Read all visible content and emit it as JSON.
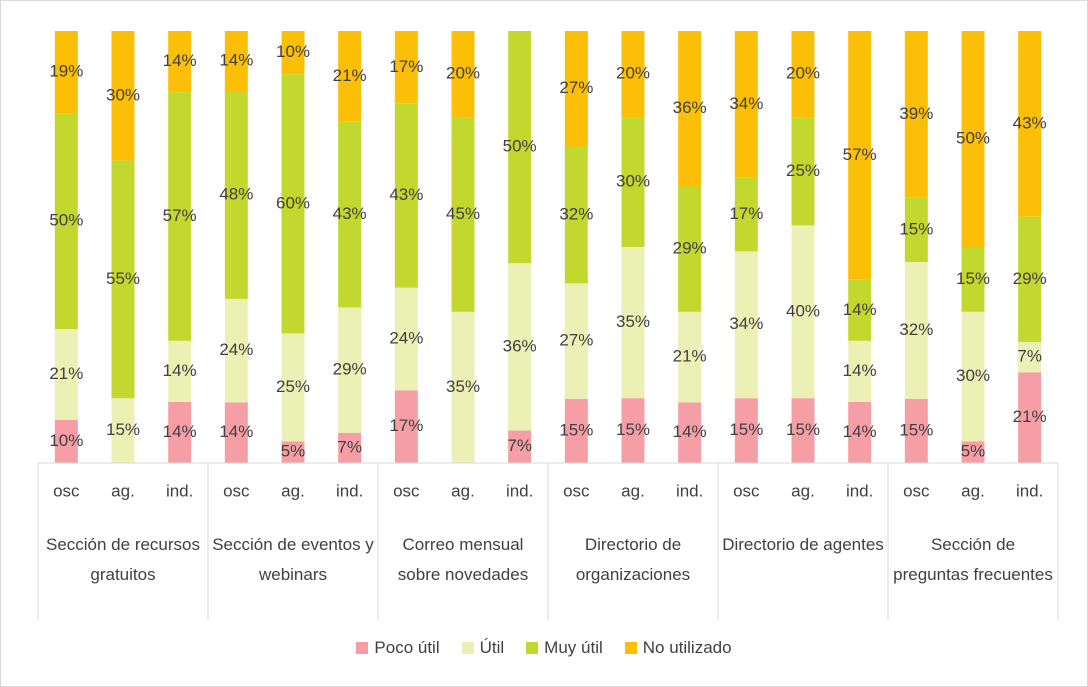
{
  "chart_data": {
    "type": "bar",
    "stacked": "percent",
    "categories": [
      "osc",
      "ag.",
      "ind.",
      "osc",
      "ag.",
      "ind.",
      "osc",
      "ag.",
      "ind.",
      "osc",
      "ag.",
      "ind.",
      "osc",
      "ag.",
      "ind.",
      "osc",
      "ag.",
      "ind."
    ],
    "groups": [
      "Sección de recursos gratuitos",
      "Sección de eventos y webinars",
      "Correo mensual sobre novedades",
      "Directorio de organizaciones",
      "Directorio de agentes",
      "Sección de preguntas frecuentes"
    ],
    "series": [
      {
        "name": "Poco útil",
        "color": "#f59ea5",
        "values": [
          10,
          null,
          14,
          14,
          5,
          7,
          17,
          null,
          7,
          15,
          15,
          14,
          15,
          15,
          14,
          15,
          5,
          21
        ],
        "value_labels": [
          "10%",
          null,
          "14%",
          "14%",
          "5%",
          "7%",
          "17%",
          null,
          "7%",
          "15%",
          "15%",
          "14%",
          "15%",
          "15%",
          "14%",
          "15%",
          "5%",
          "21%"
        ]
      },
      {
        "name": "Útil",
        "color": "#ebf1b5",
        "values": [
          21,
          15,
          14,
          24,
          25,
          29,
          24,
          35,
          36,
          27,
          35,
          21,
          34,
          40,
          14,
          32,
          30,
          7
        ],
        "value_labels": [
          "21%",
          "15%",
          "14%",
          "24%",
          "25%",
          "29%",
          "24%",
          "35%",
          "36%",
          "27%",
          "35%",
          "21%",
          "34%",
          "40%",
          "14%",
          "32%",
          "30%",
          "7%"
        ]
      },
      {
        "name": "Muy útil",
        "color": "#c3d82e",
        "values": [
          50,
          55,
          57,
          48,
          60,
          43,
          43,
          45,
          50,
          32,
          30,
          29,
          17,
          25,
          14,
          15,
          15,
          29
        ],
        "value_labels": [
          "50%",
          "55%",
          "57%",
          "48%",
          "60%",
          "43%",
          "43%",
          "45%",
          "50%",
          "32%",
          "30%",
          "29%",
          "17%",
          "25%",
          "14%",
          "15%",
          "15%",
          "29%"
        ]
      },
      {
        "name": "No utilizado",
        "color": "#fbbf08",
        "values": [
          19,
          30,
          14,
          14,
          10,
          21,
          17,
          20,
          null,
          27,
          20,
          36,
          34,
          20,
          57,
          39,
          50,
          43
        ],
        "value_labels": [
          "19%",
          "30%",
          "14%",
          "14%",
          "10%",
          "21%",
          "17%",
          "20%",
          null,
          "27%",
          "20%",
          "36%",
          "34%",
          "20%",
          "57%",
          "39%",
          "50%",
          "43%"
        ]
      }
    ]
  }
}
